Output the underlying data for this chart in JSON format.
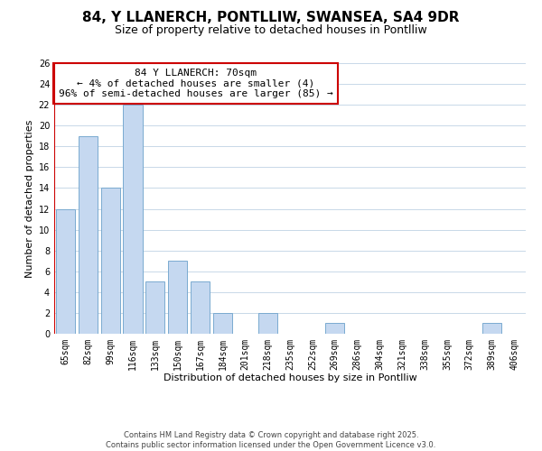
{
  "title": "84, Y LLANERCH, PONTLLIW, SWANSEA, SA4 9DR",
  "subtitle": "Size of property relative to detached houses in Pontlliw",
  "xlabel": "Distribution of detached houses by size in Pontlliw",
  "ylabel": "Number of detached properties",
  "categories": [
    "65sqm",
    "82sqm",
    "99sqm",
    "116sqm",
    "133sqm",
    "150sqm",
    "167sqm",
    "184sqm",
    "201sqm",
    "218sqm",
    "235sqm",
    "252sqm",
    "269sqm",
    "286sqm",
    "304sqm",
    "321sqm",
    "338sqm",
    "355sqm",
    "372sqm",
    "389sqm",
    "406sqm"
  ],
  "values": [
    12,
    19,
    14,
    22,
    5,
    7,
    5,
    2,
    0,
    2,
    0,
    0,
    1,
    0,
    0,
    0,
    0,
    0,
    0,
    1,
    0
  ],
  "bar_color": "#c5d8f0",
  "bar_edge_color": "#7aaad0",
  "highlight_line_color": "#cc0000",
  "annotation_text": "84 Y LLANERCH: 70sqm\n← 4% of detached houses are smaller (4)\n96% of semi-detached houses are larger (85) →",
  "annotation_box_color": "#ffffff",
  "annotation_box_edge_color": "#cc0000",
  "ylim": [
    0,
    26
  ],
  "yticks": [
    0,
    2,
    4,
    6,
    8,
    10,
    12,
    14,
    16,
    18,
    20,
    22,
    24,
    26
  ],
  "background_color": "#ffffff",
  "grid_color": "#c8d8e8",
  "footer_line1": "Contains HM Land Registry data © Crown copyright and database right 2025.",
  "footer_line2": "Contains public sector information licensed under the Open Government Licence v3.0.",
  "title_fontsize": 11,
  "subtitle_fontsize": 9,
  "label_fontsize": 8,
  "tick_fontsize": 7,
  "annotation_fontsize": 8,
  "footer_fontsize": 6
}
